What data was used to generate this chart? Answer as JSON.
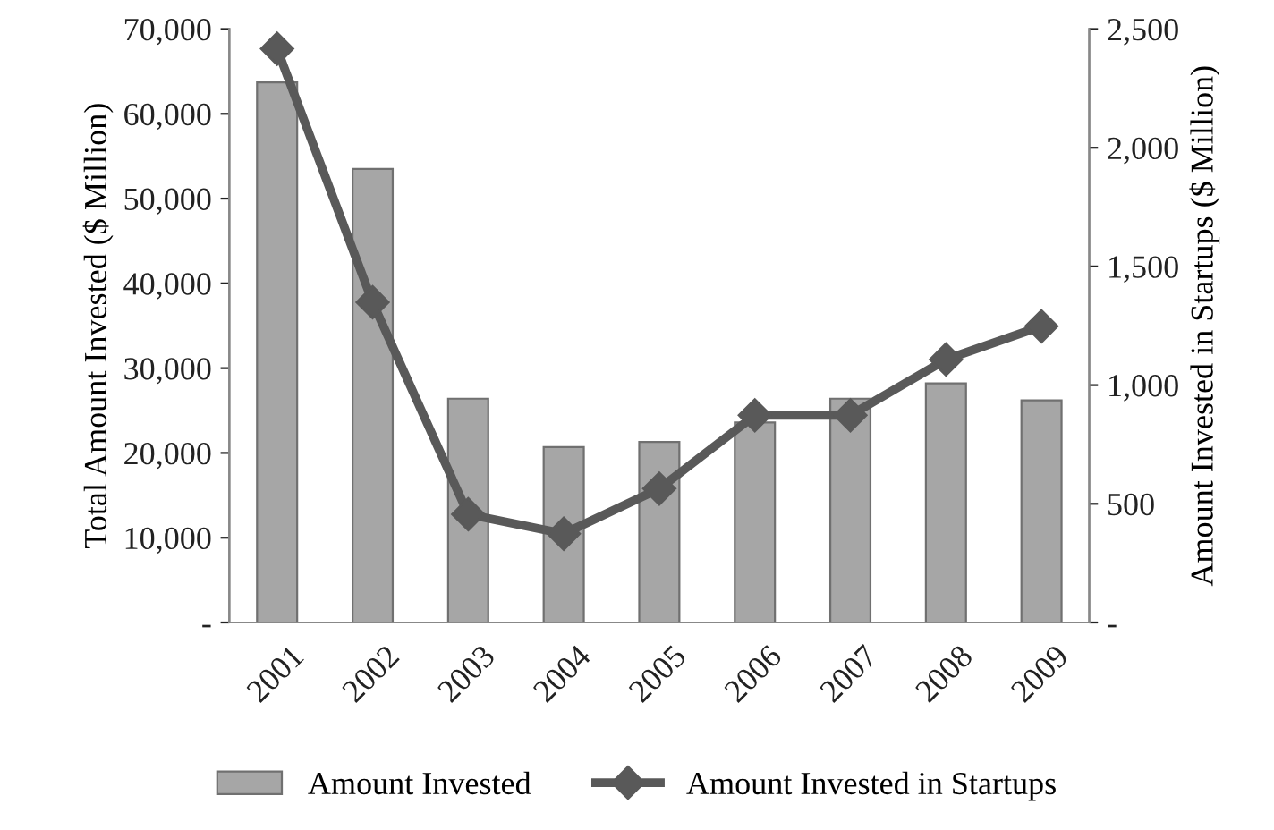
{
  "chart_data": {
    "type": "bar",
    "ylabel": "Total Amount Invested ($ Million)",
    "y2label": "Amount Invested in Startups ($ Million)",
    "categories": [
      "2001",
      "2002",
      "2003",
      "2004",
      "2005",
      "2006",
      "2007",
      "2008",
      "2009"
    ],
    "series": [
      {
        "name": "Amount Invested",
        "color": "#a6a6a6",
        "values": [
          63700,
          53500,
          26400,
          20700,
          21300,
          23600,
          26400,
          28200,
          26200
        ]
      },
      {
        "name": "Amount Invested in Startups",
        "color": "#595959",
        "type": "line",
        "axis": "y2",
        "marker": "diamond",
        "values": [
          2417,
          1349,
          456,
          374,
          564,
          873,
          873,
          1108,
          1248
        ]
      }
    ],
    "ylim": [
      0,
      70000
    ],
    "yticks": [
      {
        "value": 0,
        "label": "-"
      },
      {
        "value": 10000,
        "label": "10,000"
      },
      {
        "value": 20000,
        "label": "20,000"
      },
      {
        "value": 30000,
        "label": "30,000"
      },
      {
        "value": 40000,
        "label": "40,000"
      },
      {
        "value": 50000,
        "label": "50,000"
      },
      {
        "value": 60000,
        "label": "60,000"
      },
      {
        "value": 70000,
        "label": "70,000"
      }
    ],
    "y2lim": [
      0,
      2500
    ],
    "y2ticks": [
      {
        "value": 0,
        "label": "-"
      },
      {
        "value": 500,
        "label": "500"
      },
      {
        "value": 1000,
        "label": "1,000"
      },
      {
        "value": 1500,
        "label": "1,500"
      },
      {
        "value": 2000,
        "label": "2,000"
      },
      {
        "value": 2500,
        "label": "2,500"
      }
    ],
    "grid": false,
    "legend": "bottom"
  }
}
